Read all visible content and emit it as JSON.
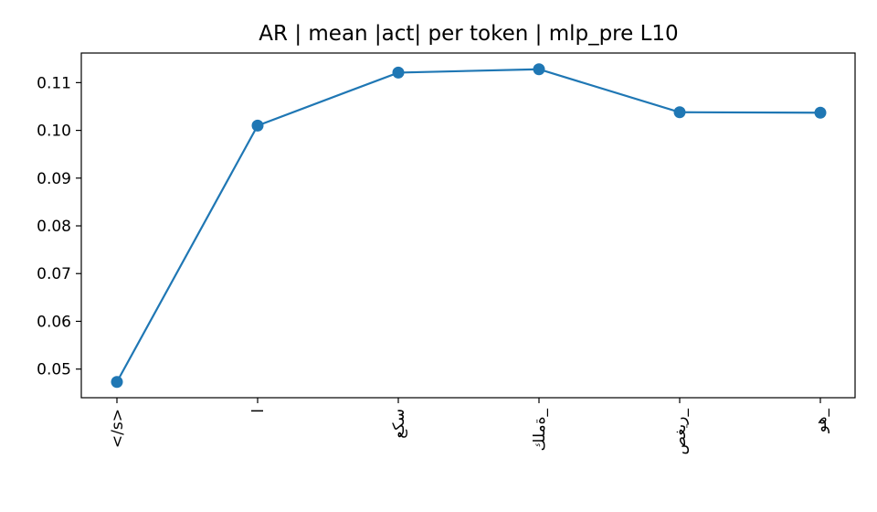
{
  "chart_data": {
    "type": "line",
    "title": "AR | mean |act| per token | mlp_pre L10",
    "xlabel": "",
    "ylabel": "",
    "categories": [
      "</s>",
      "ا",
      "سكع",
      "ةملك_",
      "ريغص_",
      "هو_"
    ],
    "values": [
      0.0473,
      0.101,
      0.1121,
      0.1128,
      0.1038,
      0.1037
    ],
    "ylim": [
      0.044,
      0.1162
    ],
    "yticks": [
      "0.05",
      "0.06",
      "0.07",
      "0.08",
      "0.09",
      "0.10",
      "0.11"
    ],
    "grid": false,
    "legend": "none",
    "colors": {
      "series": "#1f77b4",
      "axes": "#000000"
    }
  }
}
